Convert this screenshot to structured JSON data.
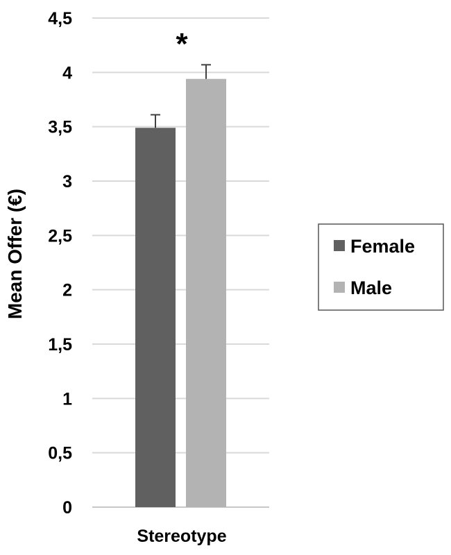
{
  "chart_data": {
    "type": "bar",
    "categories": [
      "Stereotype"
    ],
    "series": [
      {
        "name": "Female",
        "values": [
          3.49
        ],
        "error": [
          0.12
        ],
        "color": "#606060"
      },
      {
        "name": "Male",
        "values": [
          3.94
        ],
        "error": [
          0.13
        ],
        "color": "#b3b3b3"
      }
    ],
    "ylabel": "Mean Offer (€)",
    "xlabel": "",
    "ylim": [
      0,
      4.5
    ],
    "yticks": [
      "0",
      "0,5",
      "1",
      "1,5",
      "2",
      "2,5",
      "3",
      "3,5",
      "4",
      "4,5"
    ],
    "annotation": "*",
    "grid": true,
    "legend_position": "right"
  }
}
